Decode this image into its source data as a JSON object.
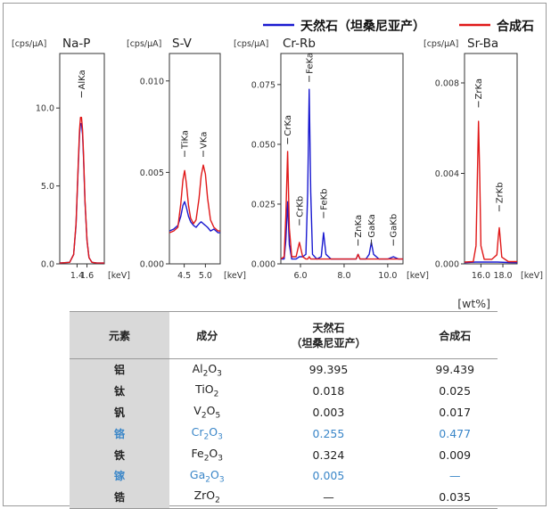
{
  "legend": {
    "natural": "天然石（坦桑尼亚产）",
    "synthetic": "合成石",
    "natural_color": "#1a1ad0",
    "synthetic_color": "#e01818"
  },
  "unit_label": "[cps/μA]",
  "kev_label": "[keV]",
  "chart_data": [
    {
      "type": "line",
      "title": "Na-P",
      "xlabel": "[keV]",
      "ylabel": "[cps/μA]",
      "xlim": [
        1.05,
        1.95
      ],
      "ylim": [
        0,
        13.5
      ],
      "xticks": [
        1.4,
        1.6
      ],
      "xtick_labels": [
        "1.4",
        "1.6"
      ],
      "yticks": [
        0,
        5,
        10
      ],
      "ytick_labels": [
        "0.0",
        "5.0",
        "10.0"
      ],
      "peak_labels": [
        {
          "text": "AlKa",
          "x": 1.49,
          "y": 10.5
        }
      ],
      "series": [
        {
          "name": "天然石（坦桑尼亚产）",
          "color": "#1a1ad0",
          "x": [
            1.05,
            1.25,
            1.33,
            1.38,
            1.42,
            1.45,
            1.47,
            1.49,
            1.51,
            1.53,
            1.56,
            1.6,
            1.64,
            1.7,
            1.8,
            1.95
          ],
          "y": [
            0.05,
            0.1,
            0.6,
            2.5,
            6.0,
            8.3,
            9.0,
            9.0,
            8.3,
            6.8,
            4.0,
            1.5,
            0.4,
            0.1,
            0.05,
            0.05
          ]
        },
        {
          "name": "合成石",
          "color": "#e01818",
          "x": [
            1.05,
            1.25,
            1.33,
            1.38,
            1.42,
            1.45,
            1.47,
            1.49,
            1.51,
            1.53,
            1.56,
            1.6,
            1.64,
            1.7,
            1.8,
            1.95
          ],
          "y": [
            0.05,
            0.1,
            0.6,
            2.6,
            6.2,
            8.6,
            9.4,
            9.4,
            8.6,
            7.0,
            4.1,
            1.5,
            0.4,
            0.1,
            0.05,
            0.05
          ]
        }
      ]
    },
    {
      "type": "line",
      "title": "S-V",
      "xlabel": "[keV]",
      "ylabel": "[cps/μA]",
      "xlim": [
        4.15,
        5.35
      ],
      "ylim": [
        0,
        0.0115
      ],
      "xticks": [
        4.5,
        5.0
      ],
      "xtick_labels": [
        "4.5",
        "5.0"
      ],
      "yticks": [
        0,
        0.005,
        0.01
      ],
      "ytick_labels": [
        "0.000",
        "0.005",
        "0.010"
      ],
      "peak_labels": [
        {
          "text": "TiKa",
          "x": 4.51,
          "y": 0.0057
        },
        {
          "text": "VKa",
          "x": 4.95,
          "y": 0.0057
        }
      ],
      "series": [
        {
          "name": "天然石（坦桑尼亚产）",
          "color": "#1a1ad0",
          "x": [
            4.15,
            4.25,
            4.35,
            4.42,
            4.47,
            4.51,
            4.55,
            4.6,
            4.65,
            4.72,
            4.78,
            4.85,
            4.9,
            4.95,
            5.0,
            5.05,
            5.12,
            5.2,
            5.3,
            5.35
          ],
          "y": [
            0.0018,
            0.0019,
            0.0021,
            0.0026,
            0.0032,
            0.0034,
            0.0031,
            0.0026,
            0.0023,
            0.0021,
            0.002,
            0.0022,
            0.0023,
            0.0022,
            0.0021,
            0.002,
            0.0018,
            0.0019,
            0.0017,
            0.0017
          ]
        },
        {
          "name": "合成石",
          "color": "#e01818",
          "x": [
            4.15,
            4.25,
            4.35,
            4.42,
            4.47,
            4.51,
            4.55,
            4.6,
            4.65,
            4.72,
            4.78,
            4.85,
            4.9,
            4.95,
            5.0,
            5.05,
            5.12,
            5.2,
            5.3,
            5.35
          ],
          "y": [
            0.0017,
            0.0018,
            0.002,
            0.0033,
            0.0046,
            0.0051,
            0.0044,
            0.0032,
            0.0025,
            0.0022,
            0.0024,
            0.0036,
            0.0048,
            0.0054,
            0.0049,
            0.0036,
            0.0024,
            0.002,
            0.0018,
            0.0018
          ]
        }
      ]
    },
    {
      "type": "line",
      "title": "Cr-Rb",
      "xlabel": "[keV]",
      "ylabel": "[cps/μA]",
      "xlim": [
        5.1,
        10.7
      ],
      "ylim": [
        0,
        0.088
      ],
      "xticks": [
        6.0,
        8.0,
        10.0
      ],
      "xtick_labels": [
        "6.0",
        "8.0",
        "10.0"
      ],
      "yticks": [
        0,
        0.025,
        0.05,
        0.075
      ],
      "ytick_labels": [
        "0.000",
        "0.025",
        "0.050",
        "0.075"
      ],
      "peak_labels": [
        {
          "text": "CrKa",
          "x": 5.41,
          "y": 0.049
        },
        {
          "text": "CrKb",
          "x": 5.95,
          "y": 0.015
        },
        {
          "text": "FeKa",
          "x": 6.4,
          "y": 0.075
        },
        {
          "text": "FeKb",
          "x": 7.06,
          "y": 0.018
        },
        {
          "text": "ZnKa",
          "x": 8.64,
          "y": 0.0065
        },
        {
          "text": "GaKa",
          "x": 9.25,
          "y": 0.0065
        },
        {
          "text": "GaKb",
          "x": 10.26,
          "y": 0.0065
        }
      ],
      "series": [
        {
          "name": "天然石（坦桑尼亚产）",
          "color": "#1a1ad0",
          "x": [
            5.1,
            5.25,
            5.33,
            5.41,
            5.49,
            5.6,
            5.8,
            5.95,
            6.1,
            6.25,
            6.33,
            6.4,
            6.47,
            6.55,
            6.75,
            6.95,
            7.06,
            7.17,
            7.4,
            7.8,
            8.2,
            8.55,
            8.64,
            8.73,
            9.0,
            9.15,
            9.25,
            9.35,
            9.6,
            10.0,
            10.26,
            10.5,
            10.7
          ],
          "y": [
            0.002,
            0.002,
            0.01,
            0.026,
            0.008,
            0.002,
            0.002,
            0.003,
            0.003,
            0.004,
            0.03,
            0.073,
            0.03,
            0.004,
            0.002,
            0.003,
            0.013,
            0.004,
            0.002,
            0.002,
            0.002,
            0.002,
            0.004,
            0.002,
            0.002,
            0.004,
            0.009,
            0.004,
            0.002,
            0.002,
            0.003,
            0.002,
            0.002
          ]
        },
        {
          "name": "合成石",
          "color": "#e01818",
          "x": [
            5.1,
            5.25,
            5.33,
            5.41,
            5.49,
            5.6,
            5.8,
            5.95,
            6.1,
            6.25,
            6.33,
            6.4,
            6.47,
            6.55,
            6.75,
            6.95,
            7.06,
            7.17,
            7.4,
            7.8,
            8.2,
            8.55,
            8.64,
            8.73,
            9.0,
            9.15,
            9.25,
            9.35,
            9.6,
            10.0,
            10.26,
            10.5,
            10.7
          ],
          "y": [
            0.002,
            0.003,
            0.02,
            0.047,
            0.015,
            0.003,
            0.003,
            0.009,
            0.003,
            0.002,
            0.002,
            0.003,
            0.002,
            0.002,
            0.002,
            0.002,
            0.002,
            0.002,
            0.002,
            0.002,
            0.002,
            0.002,
            0.004,
            0.002,
            0.002,
            0.002,
            0.002,
            0.002,
            0.002,
            0.002,
            0.002,
            0.002,
            0.002
          ]
        }
      ]
    },
    {
      "type": "line",
      "title": "Sr-Ba",
      "xlabel": "[keV]",
      "ylabel": "[cps/μA]",
      "xlim": [
        14.5,
        19.3
      ],
      "ylim": [
        0,
        0.0093
      ],
      "xticks": [
        16.0,
        18.0
      ],
      "xtick_labels": [
        "16.0",
        "18.0"
      ],
      "yticks": [
        0,
        0.004,
        0.008
      ],
      "ytick_labels": [
        "0.000",
        "0.004",
        "0.008"
      ],
      "peak_labels": [
        {
          "text": "ZrKa",
          "x": 15.78,
          "y": 0.0068
        },
        {
          "text": "ZrKb",
          "x": 17.67,
          "y": 0.0022
        }
      ],
      "series": [
        {
          "name": "天然石（坦桑尼亚产）",
          "color": "#1a1ad0",
          "x": [
            14.5,
            15.5,
            16.5,
            17.5,
            18.5,
            19.3
          ],
          "y": [
            5e-05,
            8e-05,
            8e-05,
            8e-05,
            6e-05,
            5e-05
          ]
        },
        {
          "name": "合成石",
          "color": "#e01818",
          "x": [
            14.5,
            15.3,
            15.55,
            15.68,
            15.78,
            15.88,
            16.0,
            16.3,
            17.0,
            17.45,
            17.58,
            17.67,
            17.76,
            17.9,
            18.5,
            19.3
          ],
          "y": [
            8e-05,
            0.0001,
            0.0008,
            0.004,
            0.0063,
            0.004,
            0.0008,
            0.0002,
            0.0002,
            0.0004,
            0.0012,
            0.0016,
            0.0011,
            0.0003,
            0.0001,
            0.0001
          ]
        }
      ]
    }
  ],
  "table": {
    "unit": "[wt%]",
    "headers": {
      "element": "元素",
      "component": "成分",
      "natural": "天然石\n（坦桑尼亚产）",
      "synthetic": "合成石"
    },
    "rows": [
      {
        "element": "铝",
        "formula": [
          [
            "Al",
            ""
          ],
          [
            "2",
            "sub"
          ],
          [
            "O",
            ""
          ],
          [
            "3",
            "sub"
          ]
        ],
        "natural": "99.395",
        "synthetic": "99.439",
        "highlight": false
      },
      {
        "element": "钛",
        "formula": [
          [
            "TiO",
            ""
          ],
          [
            "2",
            "sub"
          ]
        ],
        "natural": "0.018",
        "synthetic": "0.025",
        "highlight": false
      },
      {
        "element": "钒",
        "formula": [
          [
            "V",
            ""
          ],
          [
            "2",
            "sub"
          ],
          [
            "O",
            ""
          ],
          [
            "5",
            "sub"
          ]
        ],
        "natural": "0.003",
        "synthetic": "0.017",
        "highlight": false
      },
      {
        "element": "铬",
        "formula": [
          [
            "Cr",
            ""
          ],
          [
            "2",
            "sub"
          ],
          [
            "O",
            ""
          ],
          [
            "3",
            "sub"
          ]
        ],
        "natural": "0.255",
        "synthetic": "0.477",
        "highlight": true
      },
      {
        "element": "铁",
        "formula": [
          [
            "Fe",
            ""
          ],
          [
            "2",
            "sub"
          ],
          [
            "O",
            ""
          ],
          [
            "3",
            "sub"
          ]
        ],
        "natural": "0.324",
        "synthetic": "0.009",
        "highlight": false
      },
      {
        "element": "镓",
        "formula": [
          [
            "Ga",
            ""
          ],
          [
            "2",
            "sub"
          ],
          [
            "O",
            ""
          ],
          [
            "3",
            "sub"
          ]
        ],
        "natural": "0.005",
        "synthetic": "—",
        "highlight": true
      },
      {
        "element": "锆",
        "formula": [
          [
            "ZrO",
            ""
          ],
          [
            "2",
            "sub"
          ]
        ],
        "natural": "—",
        "synthetic": "0.035",
        "highlight": false
      }
    ]
  }
}
